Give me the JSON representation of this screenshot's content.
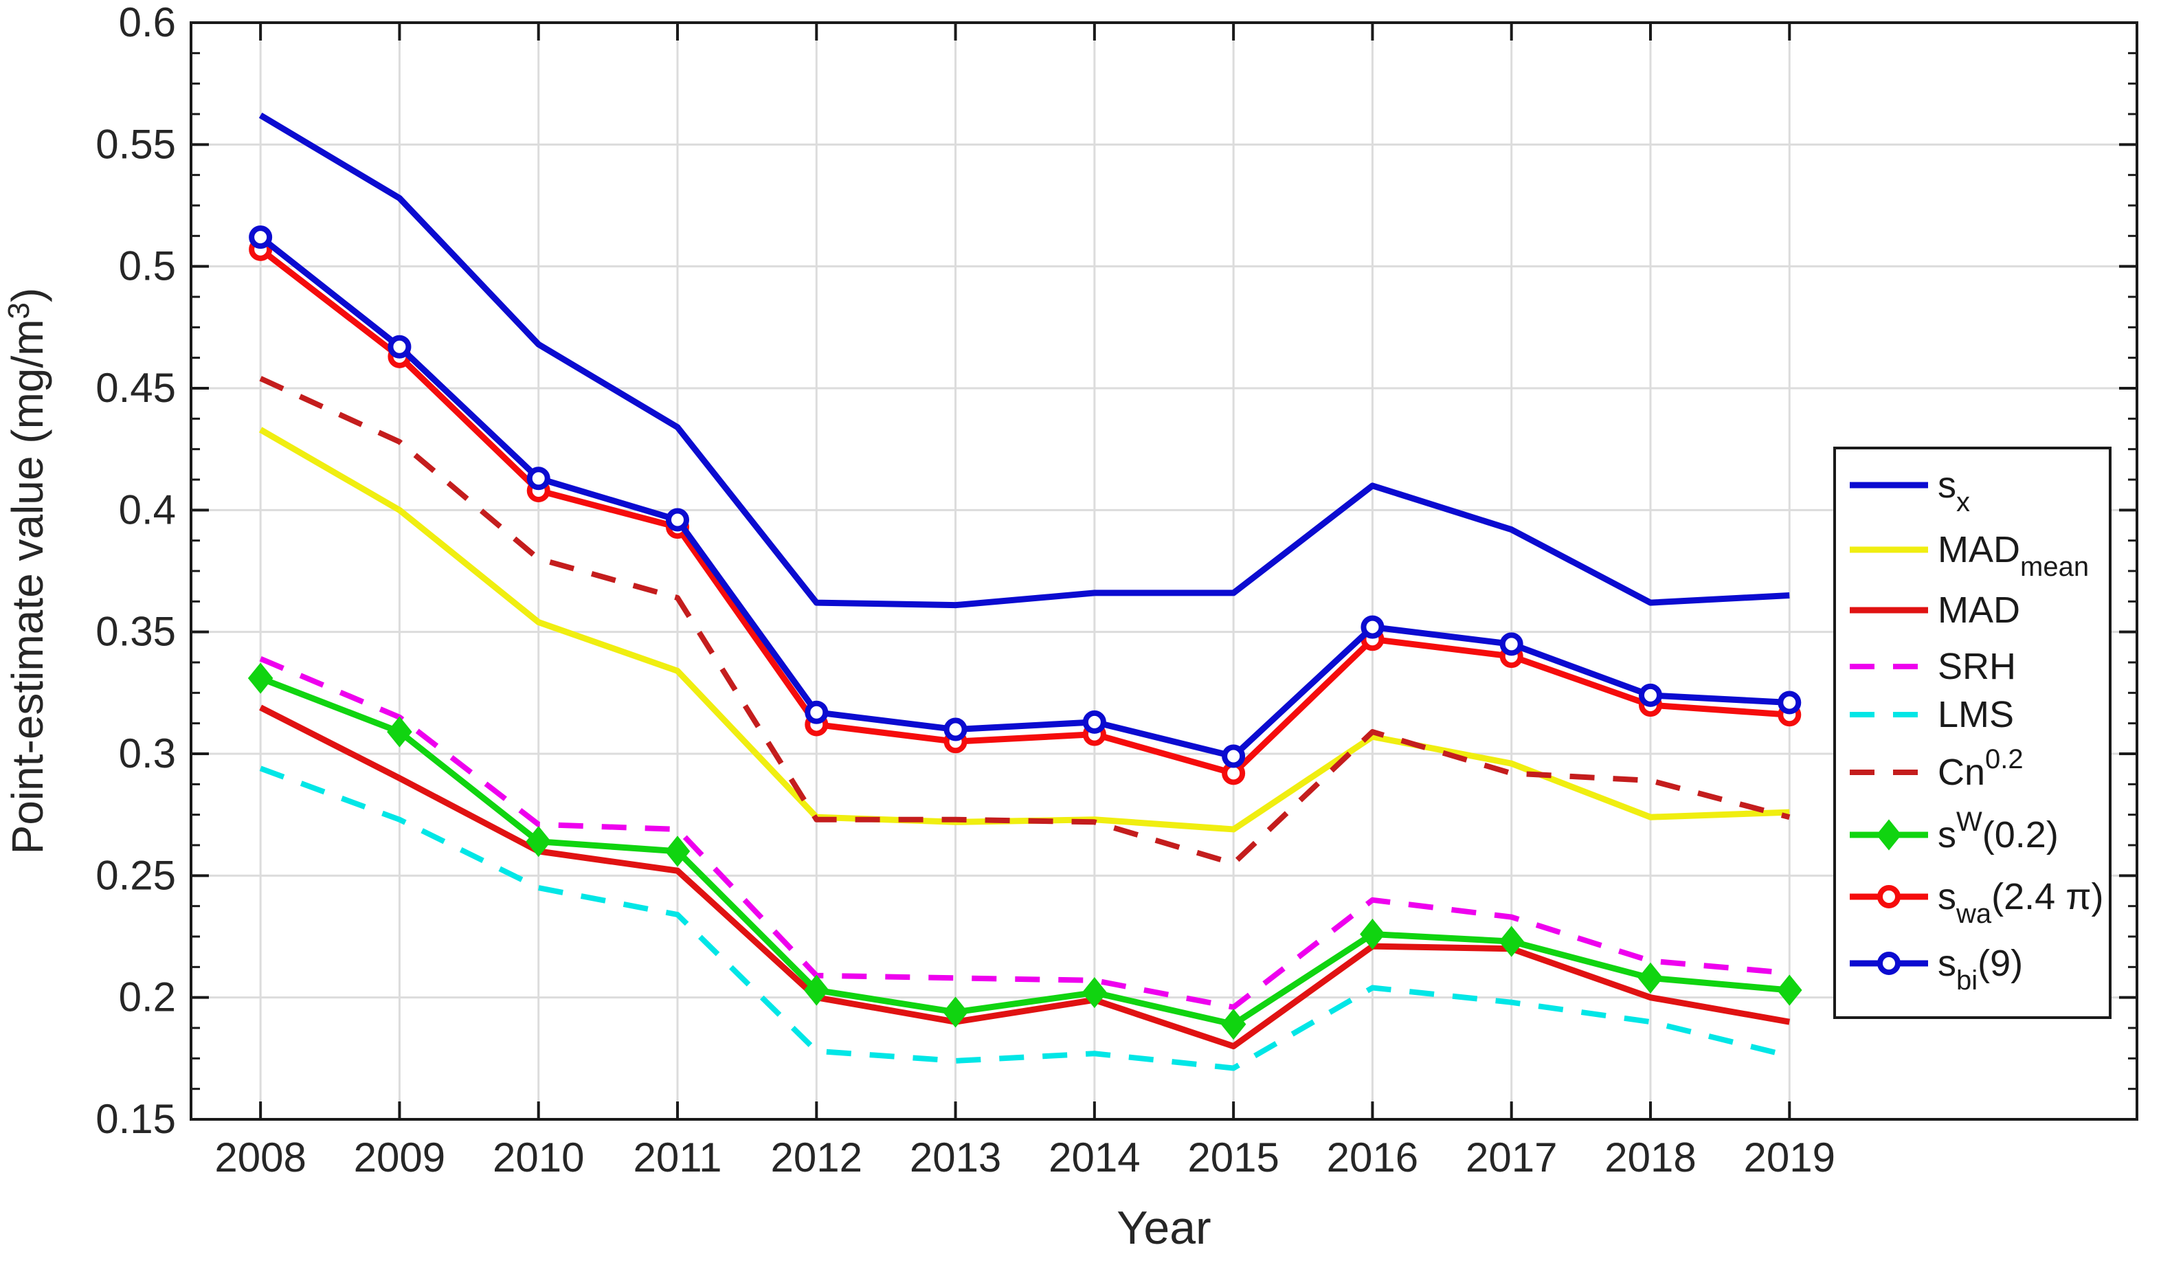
{
  "chart_data": {
    "type": "line",
    "title": "",
    "xlabel": "Year",
    "ylabel": "Point-estimate value (mg/m3)",
    "ylabel_rich": [
      {
        "t": "Point-estimate value (mg/m"
      },
      {
        "t": "3",
        "sup": true
      },
      {
        "t": ")"
      }
    ],
    "x": [
      2008,
      2009,
      2010,
      2011,
      2012,
      2013,
      2014,
      2015,
      2016,
      2017,
      2018,
      2019
    ],
    "xtick_labels": [
      "2008",
      "2009",
      "2010",
      "2011",
      "2012",
      "2013",
      "2014",
      "2015",
      "2016",
      "2017",
      "2018",
      "2019"
    ],
    "xlim": [
      2007.5,
      2021.5
    ],
    "ylim": [
      0.15,
      0.6
    ],
    "yticks": [
      0.15,
      0.2,
      0.25,
      0.3,
      0.35,
      0.4,
      0.45,
      0.5,
      0.55,
      0.6
    ],
    "ytick_labels": [
      "0.15",
      "0.2",
      "0.25",
      "0.3",
      "0.35",
      "0.4",
      "0.45",
      "0.5",
      "0.55",
      "0.6"
    ],
    "y_minor_tick_step": 0.0125,
    "grid": true,
    "legend_position": "inside-right",
    "background": "#ffffff",
    "axis_color": "#1a1a1a",
    "grid_color": "#dcdcdc",
    "tick_label_color": "#262626",
    "series": [
      {
        "name": "s_x",
        "label_rich": [
          {
            "t": "s"
          },
          {
            "t": "x",
            "sub": true
          }
        ],
        "color": "#0b0bd0",
        "style": "solid",
        "marker": "none",
        "width": 9,
        "values": [
          0.562,
          0.528,
          0.468,
          0.434,
          0.362,
          0.361,
          0.366,
          0.366,
          0.41,
          0.392,
          0.362,
          0.365
        ]
      },
      {
        "name": "MAD_mean",
        "label_rich": [
          {
            "t": "MAD"
          },
          {
            "t": "mean",
            "sub": true
          }
        ],
        "color": "#f0ee10",
        "style": "solid",
        "marker": "none",
        "width": 9,
        "values": [
          0.433,
          0.4,
          0.354,
          0.334,
          0.274,
          0.272,
          0.273,
          0.269,
          0.307,
          0.296,
          0.274,
          0.276
        ]
      },
      {
        "name": "MAD",
        "label_rich": [
          {
            "t": "MAD"
          }
        ],
        "color": "#e01212",
        "style": "solid",
        "marker": "none",
        "width": 9,
        "values": [
          0.319,
          0.29,
          0.26,
          0.252,
          0.2,
          0.19,
          0.199,
          0.18,
          0.221,
          0.22,
          0.2,
          0.19
        ]
      },
      {
        "name": "SRH",
        "label_rich": [
          {
            "t": "SRH"
          }
        ],
        "color": "#ee00ee",
        "style": "dashed",
        "marker": "none",
        "width": 8,
        "values": [
          0.339,
          0.315,
          0.271,
          0.269,
          0.209,
          0.208,
          0.207,
          0.196,
          0.24,
          0.233,
          0.215,
          0.21
        ]
      },
      {
        "name": "LMS",
        "label_rich": [
          {
            "t": "LMS"
          }
        ],
        "color": "#00e6e6",
        "style": "dashed",
        "marker": "none",
        "width": 8,
        "values": [
          0.294,
          0.273,
          0.245,
          0.234,
          0.178,
          0.174,
          0.177,
          0.171,
          0.204,
          0.198,
          0.19,
          0.176
        ]
      },
      {
        "name": "Cn_0.2",
        "label_rich": [
          {
            "t": "Cn"
          },
          {
            "t": "0.2",
            "sup": true
          }
        ],
        "color": "#c41d1d",
        "style": "dashed",
        "marker": "none",
        "width": 8,
        "values": [
          0.454,
          0.428,
          0.38,
          0.364,
          0.273,
          0.273,
          0.272,
          0.255,
          0.309,
          0.292,
          0.289,
          0.274
        ]
      },
      {
        "name": "s_W_0.2",
        "label_rich": [
          {
            "t": "s"
          },
          {
            "t": "W",
            "sup": true
          },
          {
            "t": "(0.2)"
          }
        ],
        "color": "#10d410",
        "style": "solid",
        "marker": "diamond",
        "width": 9,
        "values": [
          0.331,
          0.309,
          0.264,
          0.26,
          0.203,
          0.194,
          0.202,
          0.189,
          0.226,
          0.223,
          0.208,
          0.203
        ]
      },
      {
        "name": "s_wa_2.4pi",
        "label_rich": [
          {
            "t": "s"
          },
          {
            "t": "wa",
            "sub": true
          },
          {
            "t": "(2.4 π)"
          }
        ],
        "color": "#f50c0c",
        "style": "solid",
        "marker": "circle",
        "width": 9,
        "values": [
          0.507,
          0.463,
          0.408,
          0.393,
          0.312,
          0.305,
          0.308,
          0.292,
          0.347,
          0.34,
          0.32,
          0.316
        ]
      },
      {
        "name": "s_bi_9",
        "label_rich": [
          {
            "t": "s"
          },
          {
            "t": "bi",
            "sub": true
          },
          {
            "t": "(9)"
          }
        ],
        "color": "#0b0bd0",
        "style": "solid",
        "marker": "circle",
        "width": 9,
        "values": [
          0.512,
          0.467,
          0.413,
          0.396,
          0.317,
          0.31,
          0.313,
          0.299,
          0.352,
          0.345,
          0.324,
          0.321
        ]
      }
    ]
  }
}
